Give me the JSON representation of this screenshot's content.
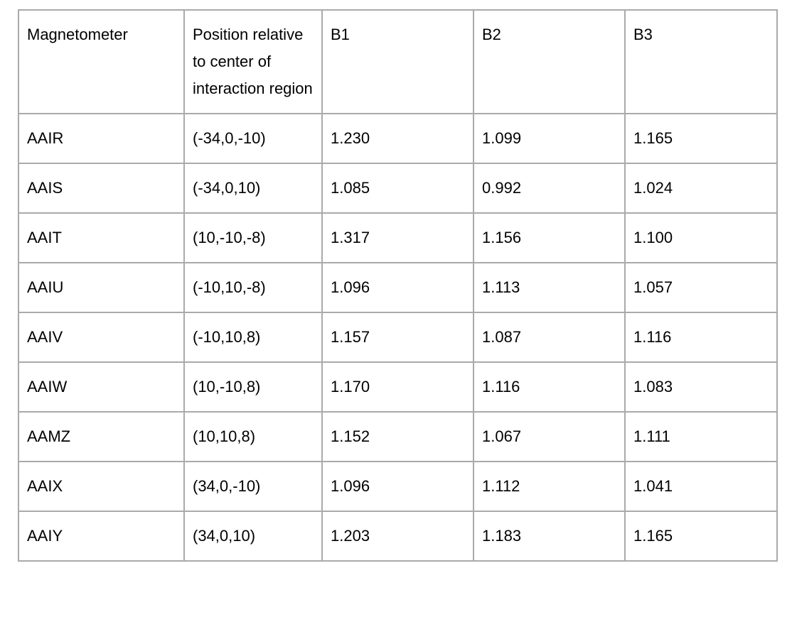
{
  "colors": {
    "background": "#ffffff",
    "border": "#aaaaaa",
    "text": "#000000"
  },
  "table": {
    "columns": [
      {
        "label": "Magnetometer"
      },
      {
        "label": "Position relative to center of interaction region"
      },
      {
        "label": "B1"
      },
      {
        "label": "B2"
      },
      {
        "label": "B3"
      }
    ],
    "rows": [
      {
        "magnetometer": "AAIR",
        "position": "(-34,0,-10)",
        "b1": "1.230",
        "b2": "1.099",
        "b3": "1.165"
      },
      {
        "magnetometer": "AAIS",
        "position": "(-34,0,10)",
        "b1": "1.085",
        "b2": "0.992",
        "b3": "1.024"
      },
      {
        "magnetometer": "AAIT",
        "position": "(10,-10,-8)",
        "b1": "1.317",
        "b2": "1.156",
        "b3": "1.100"
      },
      {
        "magnetometer": "AAIU",
        "position": "(-10,10,-8)",
        "b1": "1.096",
        "b2": "1.113",
        "b3": "1.057"
      },
      {
        "magnetometer": "AAIV",
        "position": "(-10,10,8)",
        "b1": "1.157",
        "b2": "1.087",
        "b3": "1.116"
      },
      {
        "magnetometer": "AAIW",
        "position": "(10,-10,8)",
        "b1": "1.170",
        "b2": "1.116",
        "b3": "1.083"
      },
      {
        "magnetometer": "AAMZ",
        "position": "(10,10,8)",
        "b1": "1.152",
        "b2": "1.067",
        "b3": "1.111"
      },
      {
        "magnetometer": "AAIX",
        "position": "(34,0,-10)",
        "b1": "1.096",
        "b2": "1.112",
        "b3": "1.041"
      },
      {
        "magnetometer": "AAIY",
        "position": "(34,0,10)",
        "b1": "1.203",
        "b2": "1.183",
        "b3": "1.165"
      }
    ]
  },
  "chart_data": {
    "type": "table",
    "columns": [
      "Magnetometer",
      "Position relative to center of interaction region",
      "B1",
      "B2",
      "B3"
    ],
    "rows": [
      [
        "AAIR",
        "(-34,0,-10)",
        1.23,
        1.099,
        1.165
      ],
      [
        "AAIS",
        "(-34,0,10)",
        1.085,
        0.992,
        1.024
      ],
      [
        "AAIT",
        "(10,-10,-8)",
        1.317,
        1.156,
        1.1
      ],
      [
        "AAIU",
        "(-10,10,-8)",
        1.096,
        1.113,
        1.057
      ],
      [
        "AAIV",
        "(-10,10,8)",
        1.157,
        1.087,
        1.116
      ],
      [
        "AAIW",
        "(10,-10,8)",
        1.17,
        1.116,
        1.083
      ],
      [
        "AAMZ",
        "(10,10,8)",
        1.152,
        1.067,
        1.111
      ],
      [
        "AAIX",
        "(34,0,-10)",
        1.096,
        1.112,
        1.041
      ],
      [
        "AAIY",
        "(34,0,10)",
        1.203,
        1.183,
        1.165
      ]
    ]
  }
}
